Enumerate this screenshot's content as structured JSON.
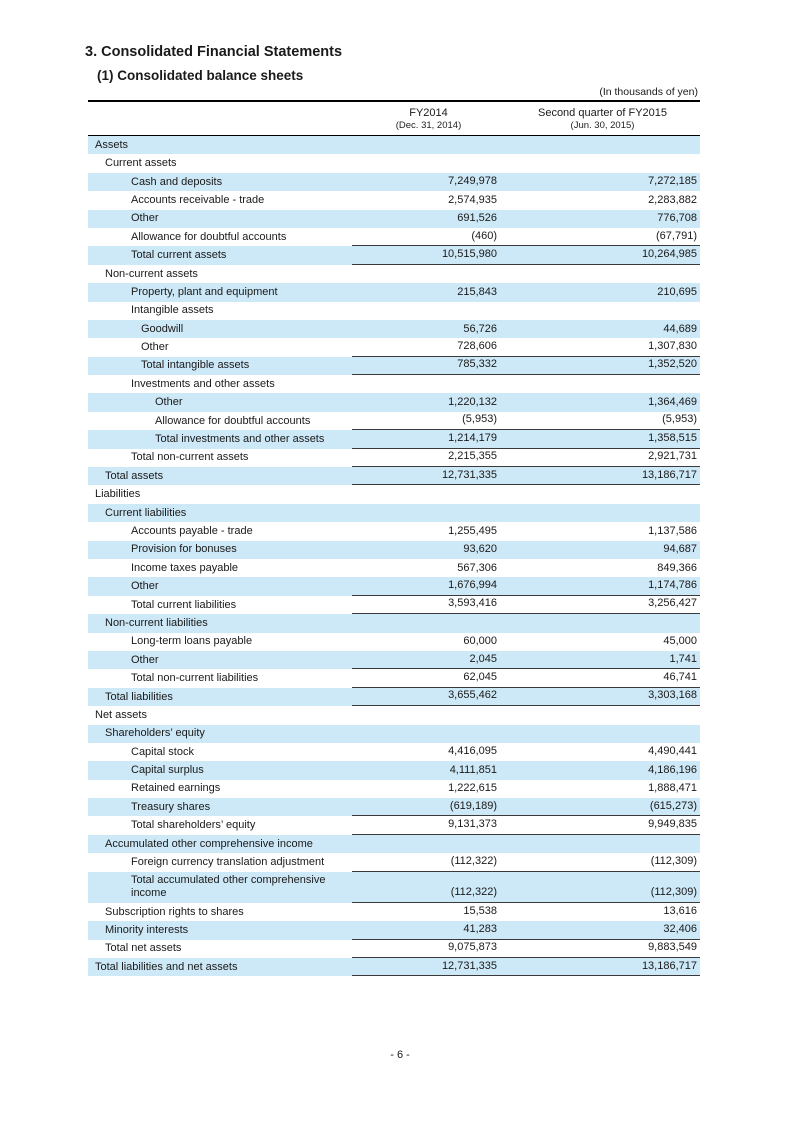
{
  "page": {
    "title": "3. Consolidated Financial Statements",
    "subtitle": "(1) Consolidated balance sheets",
    "unit_note": "(In thousands of yen)",
    "page_number": "- 6 -"
  },
  "colors": {
    "row_shade": "#cde8f6"
  },
  "table": {
    "columns": [
      {
        "label": "FY2014",
        "sublabel": "(Dec. 31, 2014)"
      },
      {
        "label": "Second quarter of FY2015",
        "sublabel": "(Jun. 30, 2015)"
      }
    ],
    "rows": [
      {
        "label": "Assets",
        "indent": 0,
        "fy2014": "",
        "fy2015q2": ""
      },
      {
        "label": "Current assets",
        "indent": 1,
        "fy2014": "",
        "fy2015q2": ""
      },
      {
        "label": "Cash and deposits",
        "indent": 2,
        "fy2014": "7,249,978",
        "fy2015q2": "7,272,185"
      },
      {
        "label": "Accounts receivable - trade",
        "indent": 2,
        "fy2014": "2,574,935",
        "fy2015q2": "2,283,882"
      },
      {
        "label": "Other",
        "indent": 2,
        "fy2014": "691,526",
        "fy2015q2": "776,708"
      },
      {
        "label": "Allowance for doubtful accounts",
        "indent": 2,
        "fy2014": "(460)",
        "fy2015q2": "(67,791)",
        "rule": true
      },
      {
        "label": "Total current assets",
        "indent": 2,
        "fy2014": "10,515,980",
        "fy2015q2": "10,264,985",
        "rule": true
      },
      {
        "label": "Non-current assets",
        "indent": 1,
        "fy2014": "",
        "fy2015q2": ""
      },
      {
        "label": "Property, plant and equipment",
        "indent": 2,
        "fy2014": "215,843",
        "fy2015q2": "210,695"
      },
      {
        "label": "Intangible assets",
        "indent": 2,
        "fy2014": "",
        "fy2015q2": ""
      },
      {
        "label": "Goodwill",
        "indent": 3,
        "fy2014": "56,726",
        "fy2015q2": "44,689"
      },
      {
        "label": "Other",
        "indent": 3,
        "fy2014": "728,606",
        "fy2015q2": "1,307,830",
        "rule": true
      },
      {
        "label": "Total intangible assets",
        "indent": 3,
        "fy2014": "785,332",
        "fy2015q2": "1,352,520",
        "rule": true
      },
      {
        "label": "Investments and other assets",
        "indent": 2,
        "fy2014": "",
        "fy2015q2": ""
      },
      {
        "label": "Other",
        "indent": 4,
        "fy2014": "1,220,132",
        "fy2015q2": "1,364,469"
      },
      {
        "label": "Allowance for doubtful accounts",
        "indent": 4,
        "fy2014": "(5,953)",
        "fy2015q2": "(5,953)",
        "rule": true
      },
      {
        "label": "Total investments and other assets",
        "indent": 4,
        "fy2014": "1,214,179",
        "fy2015q2": "1,358,515",
        "rule": true
      },
      {
        "label": "Total non-current assets",
        "indent": 2,
        "fy2014": "2,215,355",
        "fy2015q2": "2,921,731",
        "rule": true
      },
      {
        "label": "Total assets",
        "indent": 1,
        "fy2014": "12,731,335",
        "fy2015q2": "13,186,717",
        "rule": true
      },
      {
        "label": "Liabilities",
        "indent": 0,
        "fy2014": "",
        "fy2015q2": ""
      },
      {
        "label": "Current liabilities",
        "indent": 1,
        "fy2014": "",
        "fy2015q2": ""
      },
      {
        "label": "Accounts payable - trade",
        "indent": 2,
        "fy2014": "1,255,495",
        "fy2015q2": "1,137,586"
      },
      {
        "label": "Provision for bonuses",
        "indent": 2,
        "fy2014": "93,620",
        "fy2015q2": "94,687"
      },
      {
        "label": "Income taxes payable",
        "indent": 2,
        "fy2014": "567,306",
        "fy2015q2": "849,366"
      },
      {
        "label": "Other",
        "indent": 2,
        "fy2014": "1,676,994",
        "fy2015q2": "1,174,786",
        "rule": true
      },
      {
        "label": "Total current liabilities",
        "indent": 2,
        "fy2014": "3,593,416",
        "fy2015q2": "3,256,427",
        "rule": true
      },
      {
        "label": "Non-current liabilities",
        "indent": 1,
        "fy2014": "",
        "fy2015q2": ""
      },
      {
        "label": "Long-term loans payable",
        "indent": 2,
        "fy2014": "60,000",
        "fy2015q2": "45,000"
      },
      {
        "label": "Other",
        "indent": 2,
        "fy2014": "2,045",
        "fy2015q2": "1,741",
        "rule": true
      },
      {
        "label": "Total non-current liabilities",
        "indent": 2,
        "fy2014": "62,045",
        "fy2015q2": "46,741",
        "rule": true
      },
      {
        "label": "Total liabilities",
        "indent": 1,
        "fy2014": "3,655,462",
        "fy2015q2": "3,303,168",
        "rule": true
      },
      {
        "label": "Net assets",
        "indent": 0,
        "fy2014": "",
        "fy2015q2": ""
      },
      {
        "label": "Shareholders’ equity",
        "indent": 1,
        "fy2014": "",
        "fy2015q2": ""
      },
      {
        "label": "Capital stock",
        "indent": 2,
        "fy2014": "4,416,095",
        "fy2015q2": "4,490,441"
      },
      {
        "label": "Capital surplus",
        "indent": 2,
        "fy2014": "4,111,851",
        "fy2015q2": "4,186,196"
      },
      {
        "label": "Retained earnings",
        "indent": 2,
        "fy2014": "1,222,615",
        "fy2015q2": "1,888,471"
      },
      {
        "label": "Treasury shares",
        "indent": 2,
        "fy2014": "(619,189)",
        "fy2015q2": "(615,273)",
        "rule": true
      },
      {
        "label": "Total shareholders’ equity",
        "indent": 2,
        "fy2014": "9,131,373",
        "fy2015q2": "9,949,835",
        "rule": true
      },
      {
        "label": "Accumulated other comprehensive income",
        "indent": 1,
        "fy2014": "",
        "fy2015q2": ""
      },
      {
        "label": "Foreign currency translation adjustment",
        "indent": 2,
        "fy2014": "(112,322)",
        "fy2015q2": "(112,309)",
        "rule": true
      },
      {
        "label": "Total accumulated other comprehensive income",
        "indent": 2,
        "fy2014": "(112,322)",
        "fy2015q2": "(112,309)",
        "rule": true
      },
      {
        "label": "Subscription rights to shares",
        "indent": 1,
        "fy2014": "15,538",
        "fy2015q2": "13,616"
      },
      {
        "label": "Minority interests",
        "indent": 1,
        "fy2014": "41,283",
        "fy2015q2": "32,406",
        "rule": true
      },
      {
        "label": "Total net assets",
        "indent": 1,
        "fy2014": "9,075,873",
        "fy2015q2": "9,883,549",
        "rule": true
      },
      {
        "label": "Total liabilities and net assets",
        "indent": 0,
        "fy2014": "12,731,335",
        "fy2015q2": "13,186,717",
        "rule": true
      }
    ]
  }
}
